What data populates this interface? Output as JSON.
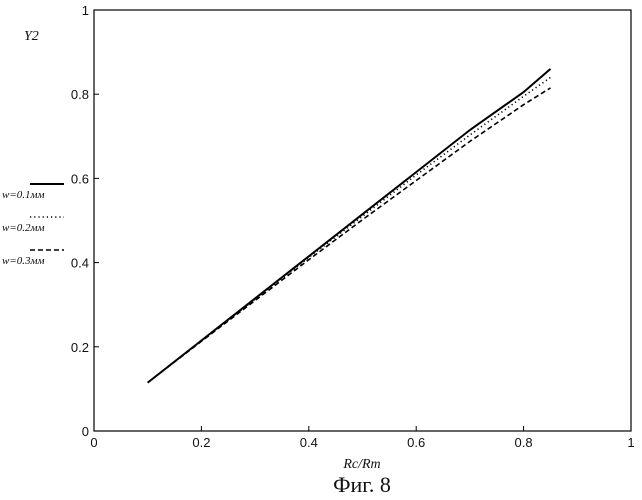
{
  "chart_data": {
    "type": "line",
    "title": "",
    "ylabel": "Y2",
    "xlabel": "Rc/Rm",
    "caption": "Фиг. 8",
    "xlim": [
      0,
      1
    ],
    "ylim": [
      0,
      1
    ],
    "x_ticks": [
      "0",
      "0.2",
      "0.4",
      "0.6",
      "0.8",
      "1"
    ],
    "y_ticks": [
      "0",
      "0.2",
      "0.4",
      "0.6",
      "0.8",
      "1"
    ],
    "grid": false,
    "legend_position": "left",
    "series": [
      {
        "name": "w=0.1мм",
        "style": "solid",
        "color": "#000000",
        "x": [
          0.1,
          0.2,
          0.3,
          0.4,
          0.5,
          0.6,
          0.7,
          0.8,
          0.85
        ],
        "y": [
          0.115,
          0.215,
          0.315,
          0.415,
          0.515,
          0.615,
          0.715,
          0.805,
          0.86
        ]
      },
      {
        "name": "w=0.2мм",
        "style": "dotted",
        "color": "#000000",
        "x": [
          0.1,
          0.2,
          0.3,
          0.4,
          0.5,
          0.6,
          0.7,
          0.8,
          0.85
        ],
        "y": [
          0.115,
          0.214,
          0.313,
          0.412,
          0.51,
          0.608,
          0.703,
          0.795,
          0.84
        ]
      },
      {
        "name": "w=0.3мм",
        "style": "dashed",
        "color": "#000000",
        "x": [
          0.1,
          0.2,
          0.3,
          0.4,
          0.5,
          0.6,
          0.7,
          0.8,
          0.85
        ],
        "y": [
          0.115,
          0.213,
          0.31,
          0.407,
          0.502,
          0.595,
          0.688,
          0.775,
          0.815
        ]
      }
    ]
  }
}
